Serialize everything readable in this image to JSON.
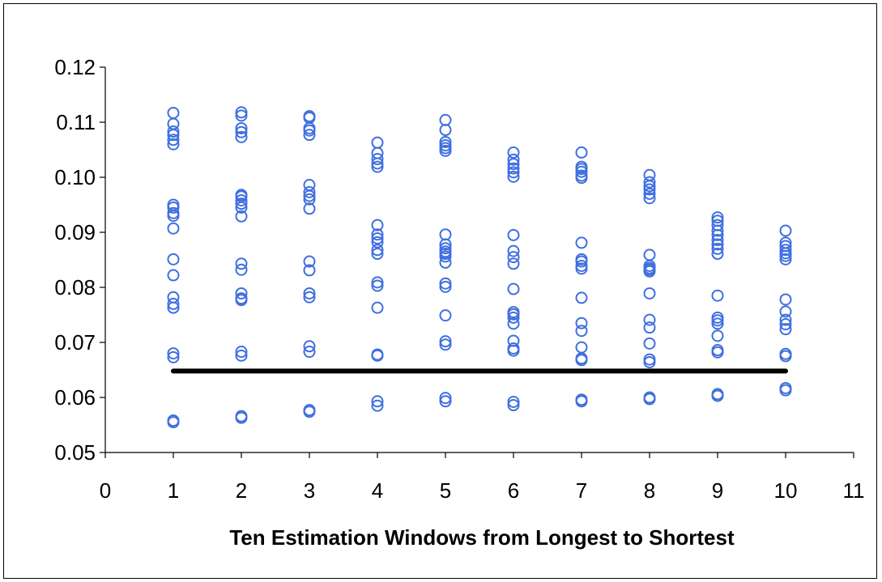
{
  "chart_data": {
    "type": "scatter",
    "title": "",
    "xlabel": "Ten Estimation Windows from Longest to Shortest",
    "ylabel": "",
    "xlim": [
      0,
      11
    ],
    "ylim": [
      0.05,
      0.12
    ],
    "x_ticks": [
      "0",
      "1",
      "2",
      "3",
      "4",
      "5",
      "6",
      "7",
      "8",
      "9",
      "10",
      "11"
    ],
    "y_ticks": [
      "0.05",
      "0.06",
      "0.07",
      "0.08",
      "0.09",
      "0.10",
      "0.11",
      "0.12"
    ],
    "grid": false,
    "legend": "none",
    "marker": "open-circle",
    "colors": {
      "points": "#3f6fe0",
      "reference_line": "#000000",
      "axes": "#000000"
    },
    "series": [
      {
        "points": [
          [
            1,
            0.1117
          ],
          [
            1,
            0.1097
          ],
          [
            1,
            0.1083
          ],
          [
            1,
            0.1077
          ],
          [
            1,
            0.1068
          ],
          [
            1,
            0.106
          ],
          [
            1,
            0.095
          ],
          [
            1,
            0.0945
          ],
          [
            1,
            0.0935
          ],
          [
            1,
            0.093
          ],
          [
            1,
            0.0907
          ],
          [
            1,
            0.0851
          ],
          [
            1,
            0.0822
          ],
          [
            1,
            0.0782
          ],
          [
            1,
            0.077
          ],
          [
            1,
            0.0763
          ],
          [
            1,
            0.068
          ],
          [
            1,
            0.0673
          ],
          [
            1,
            0.0558
          ],
          [
            1,
            0.0555
          ],
          [
            2,
            0.1118
          ],
          [
            2,
            0.1112
          ],
          [
            2,
            0.1089
          ],
          [
            2,
            0.1082
          ],
          [
            2,
            0.1073
          ],
          [
            2,
            0.0968
          ],
          [
            2,
            0.0965
          ],
          [
            2,
            0.0958
          ],
          [
            2,
            0.0952
          ],
          [
            2,
            0.0945
          ],
          [
            2,
            0.0929
          ],
          [
            2,
            0.0843
          ],
          [
            2,
            0.0832
          ],
          [
            2,
            0.0789
          ],
          [
            2,
            0.078
          ],
          [
            2,
            0.0777
          ],
          [
            2,
            0.0683
          ],
          [
            2,
            0.0676
          ],
          [
            2,
            0.0566
          ],
          [
            2,
            0.0563
          ],
          [
            3,
            0.1111
          ],
          [
            3,
            0.1108
          ],
          [
            3,
            0.1089
          ],
          [
            3,
            0.1085
          ],
          [
            3,
            0.1077
          ],
          [
            3,
            0.0986
          ],
          [
            3,
            0.0973
          ],
          [
            3,
            0.0966
          ],
          [
            3,
            0.096
          ],
          [
            3,
            0.0943
          ],
          [
            3,
            0.0847
          ],
          [
            3,
            0.0831
          ],
          [
            3,
            0.0789
          ],
          [
            3,
            0.0782
          ],
          [
            3,
            0.0693
          ],
          [
            3,
            0.0683
          ],
          [
            3,
            0.0577
          ],
          [
            3,
            0.0574
          ],
          [
            4,
            0.1063
          ],
          [
            4,
            0.1044
          ],
          [
            4,
            0.1033
          ],
          [
            4,
            0.1025
          ],
          [
            4,
            0.1019
          ],
          [
            4,
            0.0913
          ],
          [
            4,
            0.0896
          ],
          [
            4,
            0.0889
          ],
          [
            4,
            0.0882
          ],
          [
            4,
            0.0868
          ],
          [
            4,
            0.0861
          ],
          [
            4,
            0.0809
          ],
          [
            4,
            0.0803
          ],
          [
            4,
            0.0763
          ],
          [
            4,
            0.0678
          ],
          [
            4,
            0.0676
          ],
          [
            4,
            0.0593
          ],
          [
            4,
            0.0585
          ],
          [
            5,
            0.1104
          ],
          [
            5,
            0.1086
          ],
          [
            5,
            0.1064
          ],
          [
            5,
            0.1058
          ],
          [
            5,
            0.1053
          ],
          [
            5,
            0.1048
          ],
          [
            5,
            0.0896
          ],
          [
            5,
            0.0878
          ],
          [
            5,
            0.0871
          ],
          [
            5,
            0.0865
          ],
          [
            5,
            0.0861
          ],
          [
            5,
            0.0856
          ],
          [
            5,
            0.0845
          ],
          [
            5,
            0.0807
          ],
          [
            5,
            0.0801
          ],
          [
            5,
            0.0749
          ],
          [
            5,
            0.0702
          ],
          [
            5,
            0.0696
          ],
          [
            5,
            0.0599
          ],
          [
            5,
            0.0593
          ],
          [
            6,
            0.1045
          ],
          [
            6,
            0.1032
          ],
          [
            6,
            0.1024
          ],
          [
            6,
            0.1016
          ],
          [
            6,
            0.1009
          ],
          [
            6,
            0.1001
          ],
          [
            6,
            0.0895
          ],
          [
            6,
            0.0866
          ],
          [
            6,
            0.0855
          ],
          [
            6,
            0.0843
          ],
          [
            6,
            0.0797
          ],
          [
            6,
            0.0755
          ],
          [
            6,
            0.0751
          ],
          [
            6,
            0.0745
          ],
          [
            6,
            0.0734
          ],
          [
            6,
            0.0703
          ],
          [
            6,
            0.0689
          ],
          [
            6,
            0.0685
          ],
          [
            6,
            0.0592
          ],
          [
            6,
            0.0586
          ],
          [
            7,
            0.1045
          ],
          [
            7,
            0.1019
          ],
          [
            7,
            0.1015
          ],
          [
            7,
            0.101
          ],
          [
            7,
            0.1003
          ],
          [
            7,
            0.0999
          ],
          [
            7,
            0.0881
          ],
          [
            7,
            0.0851
          ],
          [
            7,
            0.0847
          ],
          [
            7,
            0.0839
          ],
          [
            7,
            0.0834
          ],
          [
            7,
            0.0781
          ],
          [
            7,
            0.0735
          ],
          [
            7,
            0.0721
          ],
          [
            7,
            0.0691
          ],
          [
            7,
            0.0671
          ],
          [
            7,
            0.0668
          ],
          [
            7,
            0.0596
          ],
          [
            7,
            0.0593
          ],
          [
            8,
            0.1004
          ],
          [
            8,
            0.0991
          ],
          [
            8,
            0.0984
          ],
          [
            8,
            0.0978
          ],
          [
            8,
            0.097
          ],
          [
            8,
            0.0962
          ],
          [
            8,
            0.0859
          ],
          [
            8,
            0.0839
          ],
          [
            8,
            0.0835
          ],
          [
            8,
            0.0832
          ],
          [
            8,
            0.0829
          ],
          [
            8,
            0.0789
          ],
          [
            8,
            0.0741
          ],
          [
            8,
            0.0727
          ],
          [
            8,
            0.0698
          ],
          [
            8,
            0.0669
          ],
          [
            8,
            0.0664
          ],
          [
            8,
            0.06
          ],
          [
            8,
            0.0597
          ],
          [
            9,
            0.0927
          ],
          [
            9,
            0.0921
          ],
          [
            9,
            0.0913
          ],
          [
            9,
            0.0903
          ],
          [
            9,
            0.0895
          ],
          [
            9,
            0.0886
          ],
          [
            9,
            0.0878
          ],
          [
            9,
            0.087
          ],
          [
            9,
            0.0861
          ],
          [
            9,
            0.0785
          ],
          [
            9,
            0.0745
          ],
          [
            9,
            0.074
          ],
          [
            9,
            0.0734
          ],
          [
            9,
            0.0712
          ],
          [
            9,
            0.0686
          ],
          [
            9,
            0.0682
          ],
          [
            9,
            0.0606
          ],
          [
            9,
            0.0603
          ],
          [
            10,
            0.0903
          ],
          [
            10,
            0.0881
          ],
          [
            10,
            0.0875
          ],
          [
            10,
            0.0868
          ],
          [
            10,
            0.0862
          ],
          [
            10,
            0.0857
          ],
          [
            10,
            0.0851
          ],
          [
            10,
            0.0778
          ],
          [
            10,
            0.0756
          ],
          [
            10,
            0.0741
          ],
          [
            10,
            0.0733
          ],
          [
            10,
            0.0724
          ],
          [
            10,
            0.0679
          ],
          [
            10,
            0.0675
          ],
          [
            10,
            0.0617
          ],
          [
            10,
            0.0613
          ]
        ]
      }
    ],
    "reference_line": {
      "x": [
        1,
        10
      ],
      "y": 0.0648
    }
  }
}
